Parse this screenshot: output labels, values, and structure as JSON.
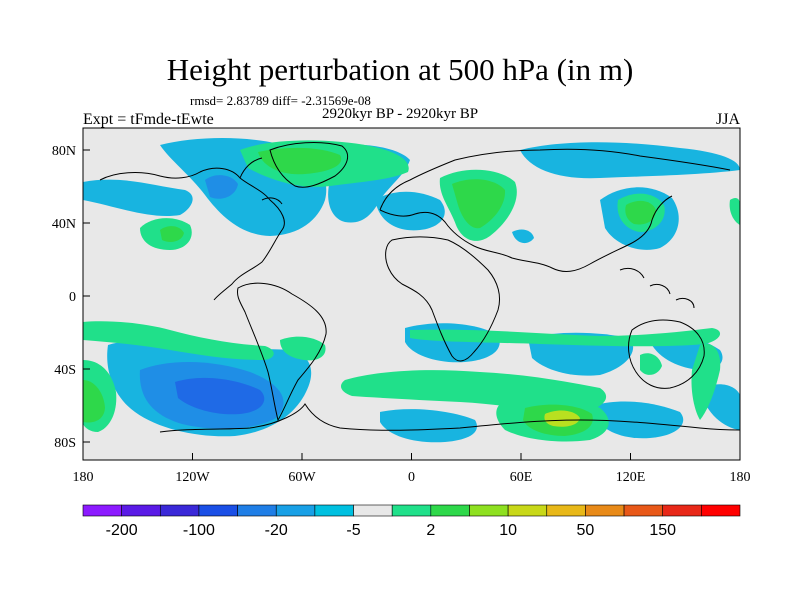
{
  "title": "Height perturbation at 500 hPa (in m)",
  "subtitle_stats": "rmsd= 2.83789 diff= -2.31569e-08",
  "left_label": "Expt = tFmde-tEwte",
  "center_label": "2920kyr BP - 2920kyr BP",
  "right_label": "JJA",
  "lat_ticks": [
    "80N",
    "40N",
    "0",
    "40S",
    "80S"
  ],
  "lon_ticks": [
    "180",
    "120W",
    "60W",
    "0",
    "60E",
    "120E",
    "180"
  ],
  "colorbar": {
    "colors": [
      "#8c1aff",
      "#5a1ae6",
      "#3a28d8",
      "#1a4fe6",
      "#1f7ee6",
      "#18a0e6",
      "#00c0e0",
      "#e8e8e8",
      "#20e08a",
      "#2ed84a",
      "#8ee020",
      "#c8d818",
      "#e8b818",
      "#e88a18",
      "#e85818",
      "#e82818",
      "#ff0000"
    ],
    "labels": [
      "-200",
      "-100",
      "-20",
      "-5",
      "2",
      "10",
      "50",
      "150"
    ]
  },
  "fill_colors": {
    "background": "#e8e8e8",
    "light_blue": "#18b4e0",
    "mid_blue": "#1f8ee6",
    "dark_blue": "#1f6ae6",
    "light_green": "#20e08a",
    "green": "#2ed84a",
    "yellow_green": "#b8e020",
    "coast": "#000000"
  }
}
